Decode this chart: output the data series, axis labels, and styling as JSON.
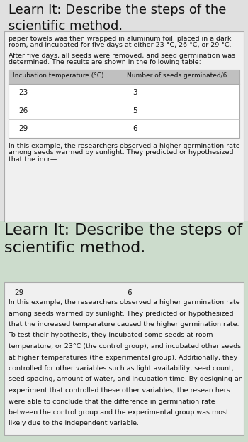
{
  "title": "Learn It: Describe the steps of the\nscientific method.",
  "title2": "Learn It: Describe the steps of the\nscientific method.",
  "bg_top": "#e0e0e0",
  "bg_bottom_outer": "#ccdccc",
  "bg_card": "#f0f0f0",
  "card_border": "#aaaaaa",
  "header_bg": "#c0c0c0",
  "font_title": 13,
  "font_body": 6.8,
  "font_table_header": 6.5,
  "font_table_data": 7.5,
  "lines_p1_before": [
    "paper towels was then wrapped in aluminum foil, placed in a dark",
    "room, and incubated for five days at either 23 °C, 26 °C, or 29 °C.",
    "",
    "After five days, all seeds were removed, and seed germination was",
    "determined. The results are shown in the following table:"
  ],
  "table_header_col1": "Incubation temperature (°C)",
  "table_header_col2": "Number of seeds germinated/6",
  "table_data": [
    [
      23,
      3
    ],
    [
      26,
      5
    ],
    [
      29,
      6
    ]
  ],
  "lines_after_table": [
    "In this example, the researchers observed a higher germination rate",
    "among seeds warmed by sunlight. They predicted or hypothesized",
    "that the incr—"
  ],
  "panel2_last_row": "29",
  "panel2_last_val": "6",
  "body2_lines": [
    "In this example, the researchers observed a higher germination rate",
    "among seeds warmed by sunlight. They predicted or hypothesized",
    "that the increased temperature caused the higher germination rate.",
    "To test their hypothesis, they incubated some seeds at room",
    "temperature, or 23°C (the control group), and incubated other seeds",
    "at higher temperatures (the experimental group). Additionally, they",
    "controlled for other variables such as light availability, seed count,",
    "seed spacing, amount of water, and incubation time. By designing an",
    "experiment that controlled these other variables, the researchers",
    "were able to conclude that the difference in germination rate",
    "between the control group and the experimental group was most",
    "likely due to the independent variable."
  ]
}
